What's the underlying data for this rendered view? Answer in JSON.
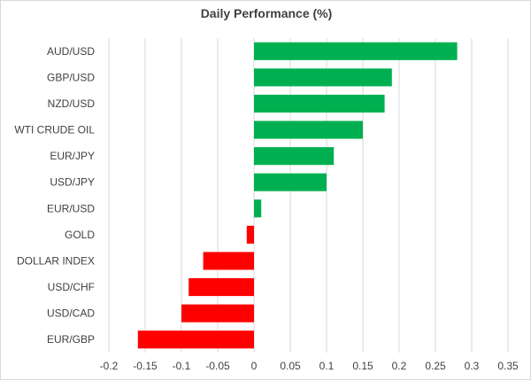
{
  "chart_data": {
    "type": "bar",
    "orientation": "horizontal",
    "title": "Daily Performance (%)",
    "xlabel": "",
    "ylabel": "",
    "categories": [
      "AUD/USD",
      "GBP/USD",
      "NZD/USD",
      "WTI CRUDE OIL",
      "EUR/JPY",
      "USD/JPY",
      "EUR/USD",
      "GOLD",
      "DOLLAR INDEX",
      "USD/CHF",
      "USD/CAD",
      "EUR/GBP"
    ],
    "values": [
      0.28,
      0.19,
      0.18,
      0.15,
      0.11,
      0.1,
      0.01,
      -0.01,
      -0.07,
      -0.09,
      -0.1,
      -0.16
    ],
    "xlim": [
      -0.2,
      0.35
    ],
    "x_ticks": [
      "-0.2",
      "-0.15",
      "-0.1",
      "-0.05",
      "0",
      "0.05",
      "0.1",
      "0.15",
      "0.2",
      "0.25",
      "0.3",
      "0.35"
    ],
    "grid": "vertical",
    "legend": "none",
    "colors": {
      "positive": "#00b050",
      "negative": "#ff0000",
      "grid": "#d9d9d9",
      "text": "#404040"
    }
  }
}
